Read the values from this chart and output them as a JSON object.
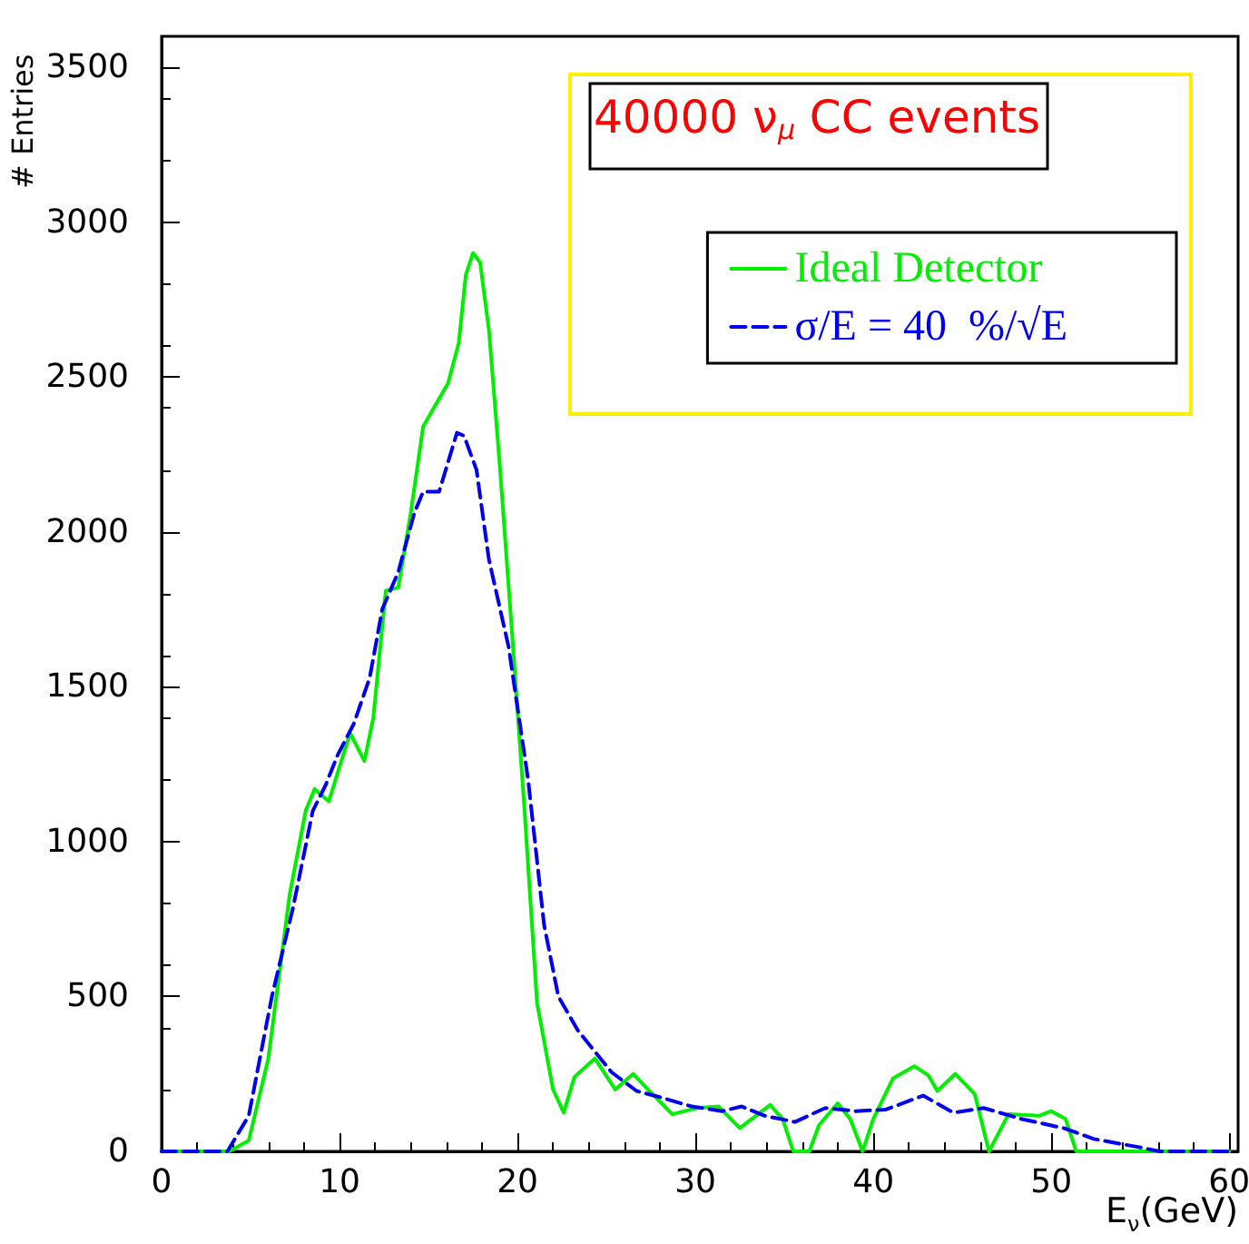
{
  "chart_data": {
    "type": "line",
    "title": "40000 ν$_{μ}$ CC events",
    "xlabel": "E$_{ν}$(GeV)",
    "ylabel": "# Entries",
    "xlim": [
      0,
      60.5
    ],
    "xticks": [
      0,
      10,
      20,
      30,
      40,
      50,
      60
    ],
    "ylim": [
      0,
      3600
    ],
    "yticks": [
      0,
      500,
      1000,
      1500,
      2000,
      2500,
      3000,
      3500
    ],
    "grid": false,
    "legend": "top right",
    "marker": "none",
    "series": [
      {
        "name": "Ideal Detector",
        "color": "#00ee00",
        "line_style": "solid",
        "x": [
          0,
          3.8,
          4.9,
          6.0,
          7.2,
          8.1,
          8.6,
          9.4,
          10.1,
          10.6,
          11.4,
          11.9,
          12.6,
          13.3,
          14.0,
          14.7,
          16.1,
          16.7,
          17.1,
          17.5,
          17.9,
          18.4,
          19.0,
          19.7,
          20.4,
          21.1,
          22.0,
          22.6,
          23.2,
          24.35,
          25.5,
          26.5,
          27.5,
          28.7,
          30.1,
          31.3,
          32.5,
          34.2,
          34.9,
          35.5,
          36.4,
          36.95,
          38.0,
          38.7,
          39.4,
          40.0,
          41.1,
          42.3,
          43.1,
          43.6,
          44.6,
          45.7,
          46.5,
          47.6,
          49.3,
          50.0,
          50.8,
          51.4,
          60
        ],
        "values": [
          0,
          0,
          35,
          300,
          830,
          1100,
          1170,
          1130,
          1260,
          1350,
          1260,
          1400,
          1810,
          1820,
          2060,
          2340,
          2480,
          2610,
          2830,
          2900,
          2870,
          2650,
          2220,
          1670,
          1100,
          480,
          200,
          125,
          240,
          300,
          200,
          250,
          190,
          120,
          140,
          145,
          75,
          150,
          105,
          0,
          0,
          85,
          155,
          105,
          0,
          105,
          235,
          275,
          245,
          195,
          250,
          185,
          0,
          120,
          115,
          130,
          105,
          0,
          0
        ]
      },
      {
        "name": "σ/E = 40  %/√E",
        "color": "#0000ee",
        "line_style": "dashed",
        "x": [
          0,
          3.7,
          4.9,
          6.2,
          7.4,
          8.5,
          9.2,
          9.9,
          10.8,
          11.7,
          12.4,
          13.3,
          14.2,
          14.7,
          15.6,
          16.6,
          17.0,
          17.7,
          18.4,
          19.5,
          20.6,
          21.5,
          22.3,
          23.4,
          24.1,
          25.3,
          26.7,
          28.0,
          29.8,
          31.5,
          32.6,
          33.9,
          35.6,
          37.3,
          39.0,
          40.7,
          42.8,
          44.5,
          46.2,
          48.3,
          50.7,
          52.4,
          54.8,
          56.1,
          60
        ],
        "values": [
          0,
          0,
          115,
          500,
          790,
          1100,
          1180,
          1280,
          1380,
          1530,
          1750,
          1870,
          2060,
          2130,
          2130,
          2320,
          2310,
          2200,
          1910,
          1630,
          1200,
          730,
          500,
          390,
          340,
          255,
          195,
          175,
          145,
          130,
          145,
          115,
          95,
          140,
          130,
          135,
          180,
          125,
          140,
          105,
          75,
          40,
          15,
          0,
          0
        ]
      }
    ]
  }
}
